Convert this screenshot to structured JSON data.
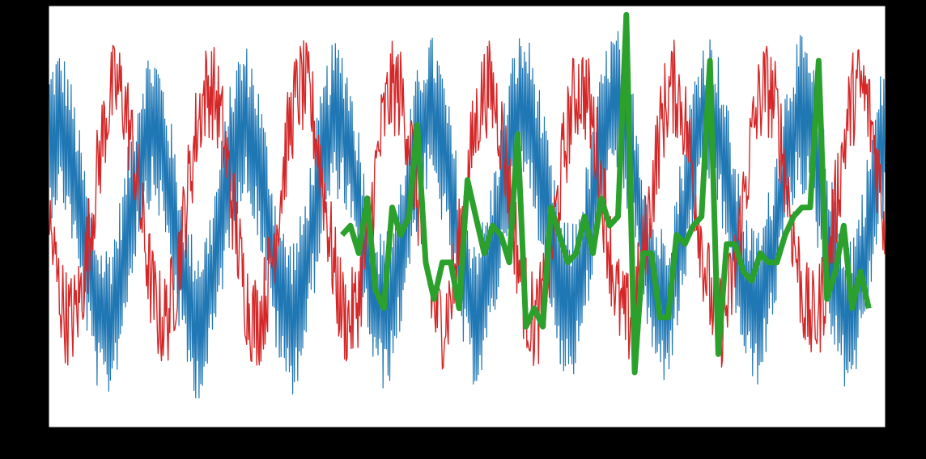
{
  "chart_data": {
    "type": "line",
    "title": "",
    "xlabel": "",
    "grid": false,
    "legend": "none",
    "background": "#000000",
    "plot_background": "#ffffff",
    "x": {
      "range": [
        -1,
        1000
      ],
      "ticks": [
        0,
        111,
        222,
        333,
        444,
        555,
        666,
        777,
        888,
        999
      ],
      "tick_labels": [
        "",
        "",
        "",
        "",
        "",
        "",
        "",
        "",
        "",
        ""
      ]
    },
    "axes": {
      "left": {
        "label": "",
        "color": "#1f77b4",
        "range": [
          -2.1,
          2.9
        ],
        "ticks": [
          -2,
          -1,
          0,
          1,
          2
        ],
        "tick_labels": [
          "",
          "",
          "",
          "",
          ""
        ]
      },
      "right_red": {
        "label": "",
        "color": "#d62728",
        "range": [
          -22,
          29
        ],
        "ticks": [
          -20,
          -10,
          0,
          10,
          20
        ],
        "tick_labels": [
          "",
          "",
          "",
          "",
          ""
        ]
      },
      "right_green": {
        "color": "#2ca02c",
        "range": [
          -2.4,
          2.2
        ],
        "ticks": [
          -2.0,
          -1.5,
          -1.0,
          -0.5,
          0.0,
          0.5,
          1.0,
          1.5,
          2.0
        ],
        "tick_labels": [
          "",
          "",
          "",
          "",
          "",
          "",
          "",
          "",
          ""
        ]
      }
    },
    "series": [
      {
        "color": "#1f77b4",
        "axis": "left",
        "style": "dense-oscillation",
        "n_points": 1000,
        "envelope_cycles": 9,
        "envelope_phase": 0.15,
        "envelope_center": [
          0.3,
          0.3,
          0.35,
          0.4,
          0.45,
          0.5,
          0.55,
          0.5,
          0.45,
          0.45
        ],
        "envelope_amplitude": 1.15,
        "noise_amplitude": 0.95
      },
      {
        "color": "#d62728",
        "axis": "right_red",
        "style": "noisy-line",
        "n_points": 1000,
        "cycles": 9,
        "phase": 3.3,
        "center": 5,
        "amplitude": 14,
        "noise_amplitude": 6
      },
      {
        "color": "#2ca02c",
        "axis": "right_green",
        "style": "thick-line",
        "x": [
          350,
          360,
          370,
          380,
          390,
          400,
          410,
          420,
          430,
          440,
          450,
          460,
          470,
          480,
          490,
          500,
          510,
          520,
          530,
          540,
          550,
          560,
          570,
          580,
          590,
          600,
          610,
          620,
          630,
          640,
          650,
          660,
          670,
          680,
          690,
          700,
          710,
          720,
          730,
          740,
          750,
          760,
          770,
          780,
          790,
          800,
          810,
          820,
          830,
          840,
          850,
          860,
          870,
          880,
          890,
          900,
          910,
          920,
          930,
          940,
          950,
          960,
          970,
          980
        ],
        "values": [
          -0.3,
          -0.2,
          -0.5,
          0.1,
          -0.9,
          -1.1,
          0.0,
          -0.3,
          -0.1,
          0.9,
          -0.6,
          -1.0,
          -0.6,
          -0.6,
          -1.1,
          0.3,
          -0.1,
          -0.5,
          -0.2,
          -0.3,
          -0.6,
          0.8,
          -1.3,
          -1.1,
          -1.3,
          0.0,
          -0.3,
          -0.6,
          -0.5,
          -0.1,
          -0.5,
          0.1,
          -0.2,
          -0.1,
          2.1,
          -1.8,
          -0.5,
          -0.5,
          -1.2,
          -1.2,
          -0.3,
          -0.4,
          -0.2,
          -0.1,
          1.6,
          -1.6,
          -0.4,
          -0.4,
          -0.7,
          -0.8,
          -0.5,
          -0.6,
          -0.6,
          -0.3,
          -0.1,
          0.0,
          0.0,
          1.6,
          -1.0,
          -0.7,
          -0.2,
          -1.1,
          -0.7,
          -1.1
        ]
      }
    ]
  }
}
